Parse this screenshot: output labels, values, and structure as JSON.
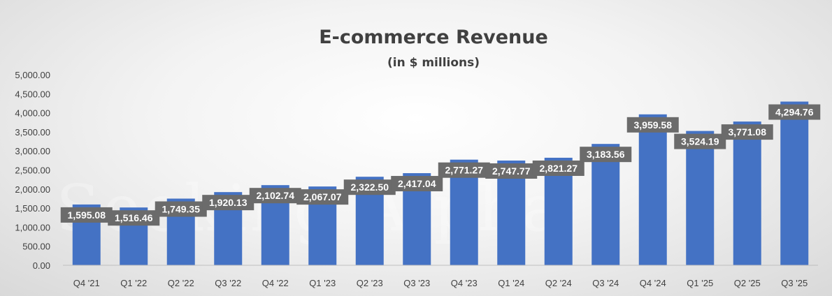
{
  "chart_data": {
    "type": "bar",
    "title": "E-commerce Revenue",
    "subtitle": "(in $ millions)",
    "xlabel": "",
    "ylabel": "",
    "ylim": [
      0,
      5000
    ],
    "yticks": [
      "0.00",
      "500.00",
      "1,000.00",
      "1,500.00",
      "2,000.00",
      "2,500.00",
      "3,000.00",
      "3,500.00",
      "4,000.00",
      "4,500.00",
      "5,000.00"
    ],
    "categories": [
      "Q4 '21",
      "Q1 '22",
      "Q2 '22",
      "Q3 '22",
      "Q4 '22",
      "Q1 '23",
      "Q2 '23",
      "Q3 '23",
      "Q4 '23",
      "Q1 '24",
      "Q2 '24",
      "Q3 '24",
      "Q4 '24",
      "Q1 '25",
      "Q2 '25",
      "Q3 '25"
    ],
    "values": [
      1595.08,
      1516.46,
      1749.35,
      1920.13,
      2102.74,
      2067.07,
      2322.5,
      2417.04,
      2771.27,
      2747.77,
      2821.27,
      3183.56,
      3959.58,
      3524.19,
      3771.08,
      4294.76
    ],
    "data_labels": [
      "1,595.08",
      "1,516.46",
      "1,749.35",
      "1,920.13",
      "2,102.74",
      "2,067.07",
      "2,322.50",
      "2,417.04",
      "2,771.27",
      "2,747.77",
      "2,821.27",
      "3,183.56",
      "3,959.58",
      "3,524.19",
      "3,771.08",
      "4,294.76"
    ],
    "grid": false,
    "legend": "none",
    "bar_color": "#4472C4",
    "label_box_color": "#6b6b6b",
    "watermark": "Seeking Alpha"
  }
}
